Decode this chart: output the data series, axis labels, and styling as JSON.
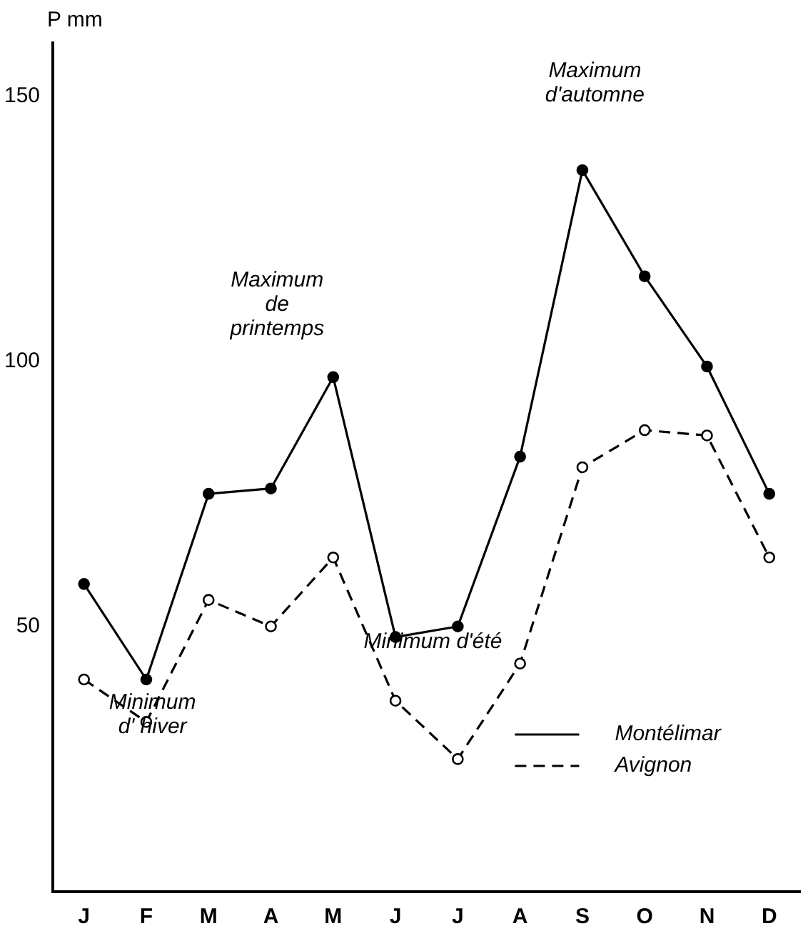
{
  "chart_data": {
    "type": "line",
    "ylabel": "P mm",
    "categories": [
      "J",
      "F",
      "M",
      "A",
      "M",
      "J",
      "J",
      "A",
      "S",
      "O",
      "N",
      "D"
    ],
    "series": [
      {
        "name": "Montélimar",
        "color": "#000000",
        "line_style": "solid",
        "values": [
          58,
          40,
          75,
          76,
          97,
          48,
          50,
          82,
          136,
          116,
          99,
          75
        ]
      },
      {
        "name": "Avignon",
        "color": "#000000",
        "line_style": "dashed",
        "values": [
          40,
          32,
          55,
          50,
          63,
          36,
          25,
          43,
          80,
          87,
          86,
          63
        ]
      }
    ],
    "ylim": [
      0,
      160
    ],
    "yticks": [
      50,
      100,
      150
    ],
    "grid": false,
    "marker": "circle",
    "legend": "bottom right",
    "annotations": [
      "Maximum\nde\nprintemps",
      "Maximum\nd'automne",
      "Minimum\nd' hiver",
      "Minimum d'été"
    ]
  }
}
